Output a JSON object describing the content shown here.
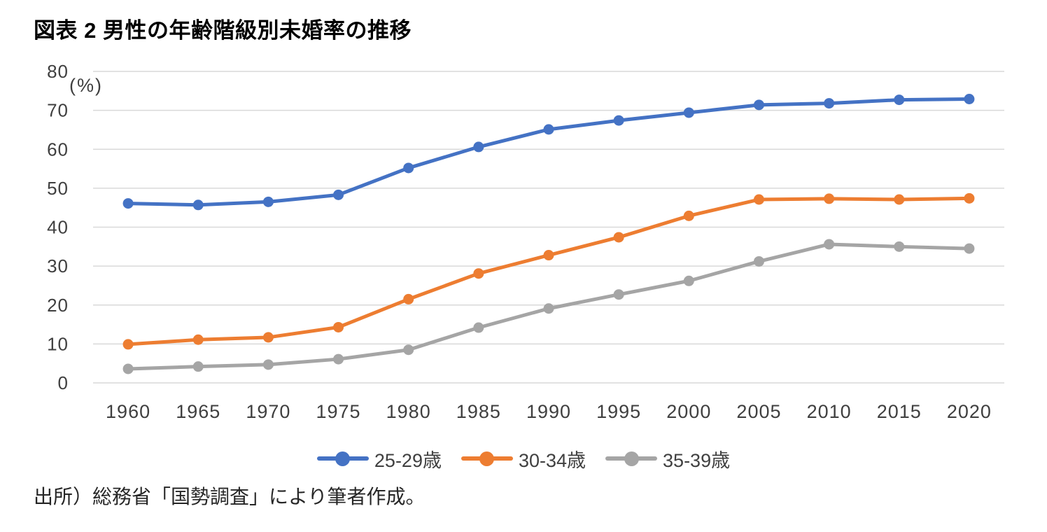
{
  "figure": {
    "title": "図表 2 男性の年齢階級別未婚率の推移",
    "source": "出所）総務省「国勢調査」により筆者作成。"
  },
  "colors": {
    "background": "#FFFFFF",
    "title_text": "#000000",
    "tick_label": "#3F3F3F",
    "legend_label": "#404040",
    "source_text": "#262626",
    "gridline": "#D9D9D9",
    "series": [
      "#4472C4",
      "#ED7D31",
      "#A5A5A5"
    ]
  },
  "chart_data": {
    "type": "line",
    "title": "図表 2 男性の年齢階級別未婚率の推移",
    "xlabel": "",
    "ylabel": "(%)",
    "categories": [
      "1960",
      "1965",
      "1970",
      "1975",
      "1980",
      "1985",
      "1990",
      "1995",
      "2000",
      "2005",
      "2010",
      "2015",
      "2020"
    ],
    "series": [
      {
        "name": "25-29歳",
        "color": "#4472C4",
        "values": [
          46.1,
          45.7,
          46.5,
          48.3,
          55.2,
          60.6,
          65.1,
          67.4,
          69.4,
          71.4,
          71.8,
          72.7,
          72.9
        ]
      },
      {
        "name": "30-34歳",
        "color": "#ED7D31",
        "values": [
          9.9,
          11.1,
          11.7,
          14.3,
          21.5,
          28.1,
          32.8,
          37.4,
          42.9,
          47.1,
          47.3,
          47.1,
          47.4
        ]
      },
      {
        "name": "35-39歳",
        "color": "#A5A5A5",
        "values": [
          3.6,
          4.2,
          4.7,
          6.1,
          8.5,
          14.2,
          19.1,
          22.7,
          26.2,
          31.2,
          35.6,
          35.0,
          34.5
        ]
      }
    ],
    "ylim": [
      0,
      80
    ],
    "ytick_step": 10,
    "yticks": [
      0,
      10,
      20,
      30,
      40,
      50,
      60,
      70,
      80
    ],
    "grid": true,
    "legend_position": "bottom"
  }
}
